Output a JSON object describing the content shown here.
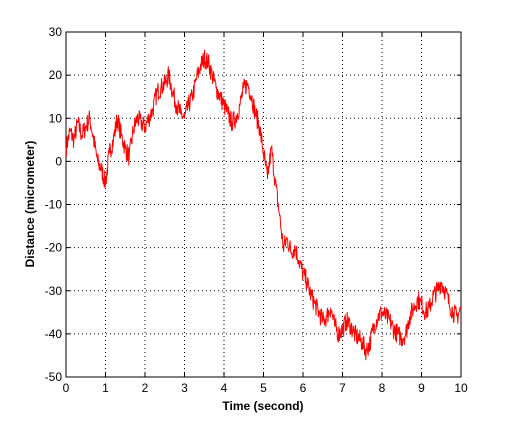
{
  "chart_data": {
    "type": "line",
    "title": "",
    "xlabel": "Time (second)",
    "ylabel": "Distance (micrometer)",
    "xlim": [
      0,
      10
    ],
    "ylim": [
      -50,
      30
    ],
    "xticks": [
      0,
      1,
      2,
      3,
      4,
      5,
      6,
      7,
      8,
      9,
      10
    ],
    "yticks": [
      -50,
      -40,
      -30,
      -20,
      -10,
      0,
      10,
      20,
      30
    ],
    "grid": true,
    "grid_style": "dotted",
    "legend": "none",
    "series": [
      {
        "color": "#ff0000",
        "x": [
          0,
          0.1,
          0.2,
          0.3,
          0.4,
          0.5,
          0.6,
          0.7,
          0.8,
          0.9,
          1.0,
          1.1,
          1.2,
          1.3,
          1.4,
          1.5,
          1.6,
          1.7,
          1.8,
          1.9,
          2.0,
          2.1,
          2.2,
          2.3,
          2.4,
          2.5,
          2.6,
          2.7,
          2.8,
          2.9,
          3.0,
          3.1,
          3.2,
          3.3,
          3.4,
          3.5,
          3.6,
          3.7,
          3.8,
          3.9,
          4.0,
          4.1,
          4.2,
          4.3,
          4.4,
          4.5,
          4.6,
          4.7,
          4.8,
          4.9,
          5.0,
          5.1,
          5.2,
          5.3,
          5.4,
          5.5,
          5.6,
          5.7,
          5.8,
          5.9,
          6.0,
          6.1,
          6.2,
          6.3,
          6.4,
          6.5,
          6.6,
          6.7,
          6.8,
          6.9,
          7.0,
          7.1,
          7.2,
          7.3,
          7.4,
          7.5,
          7.6,
          7.7,
          7.8,
          7.9,
          8.0,
          8.1,
          8.2,
          8.3,
          8.4,
          8.5,
          8.6,
          8.7,
          8.8,
          8.9,
          9.0,
          9.1,
          9.2,
          9.3,
          9.4,
          9.5,
          9.6,
          9.7,
          9.8,
          9.9,
          10.0
        ],
        "y": [
          3,
          7,
          5,
          9,
          6,
          8,
          10,
          5,
          0,
          -2,
          -5,
          2,
          5,
          10,
          6,
          3,
          1,
          7,
          10,
          9,
          8,
          10,
          12,
          16,
          17,
          18,
          20,
          16,
          13,
          11,
          10,
          13,
          15,
          19,
          22,
          24,
          23,
          20,
          17,
          15,
          13,
          11,
          9,
          10,
          13,
          17,
          18,
          15,
          11,
          8,
          2,
          -4,
          3,
          -5,
          -12,
          -20,
          -18,
          -21,
          -20,
          -23,
          -26,
          -28,
          -31,
          -33,
          -35,
          -37,
          -36,
          -34,
          -38,
          -40,
          -39,
          -37,
          -38,
          -40,
          -41,
          -42,
          -44,
          -42,
          -38,
          -36,
          -35,
          -36,
          -37,
          -39,
          -40,
          -41,
          -40,
          -36,
          -34,
          -32,
          -33,
          -35,
          -34,
          -31,
          -30,
          -28,
          -30,
          -33,
          -35,
          -36,
          -34
        ]
      }
    ]
  }
}
